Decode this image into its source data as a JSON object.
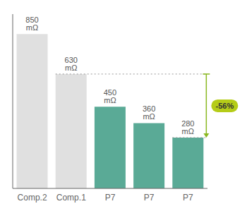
{
  "chart_data": {
    "type": "bar",
    "categories": [
      "Comp.2",
      "Comp.1",
      "P7",
      "P7",
      "P7"
    ],
    "values": [
      850,
      630,
      450,
      360,
      280
    ],
    "value_labels": [
      "850 mΩ",
      "630 mΩ",
      "450 mΩ",
      "360 mΩ",
      "280 mΩ"
    ],
    "colors": [
      "#e0e0e0",
      "#e0e0e0",
      "#5aaa96",
      "#5aaa96",
      "#5aaa96"
    ],
    "data_labels": true,
    "ylim": [
      0,
      960
    ],
    "tick_labels": "x",
    "reference_lines": [
      {
        "value": 630,
        "color": "#999999"
      },
      {
        "value": 280,
        "color": "#999999"
      }
    ],
    "annotations": [
      {
        "text": "-56%",
        "from": 630,
        "to": 280,
        "color": "#8ab820",
        "background": "#b5cc18"
      }
    ]
  }
}
